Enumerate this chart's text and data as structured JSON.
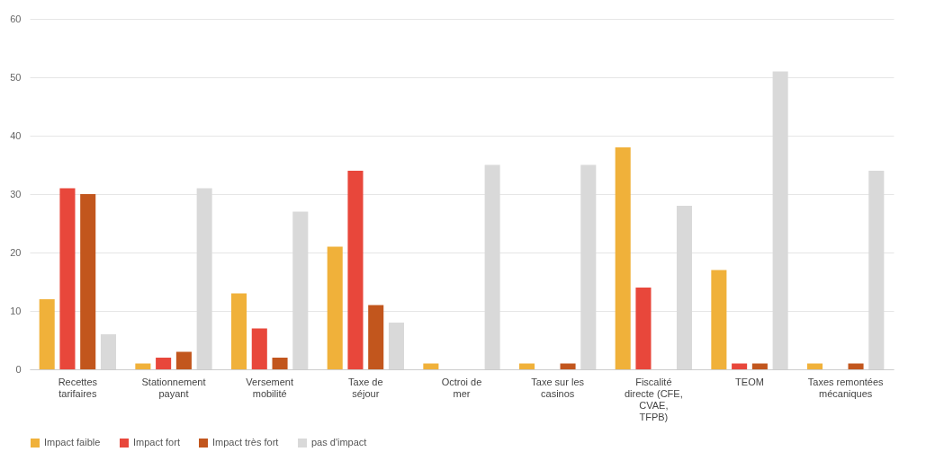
{
  "chart_data": {
    "type": "bar",
    "categories": [
      "Recettes tarifaires",
      "Stationnement payant",
      "Versement mobilité",
      "Taxe de séjour",
      "Octroi de mer",
      "Taxe sur les casinos",
      "Fiscalité directe (CFE, CVAE, TFPB)",
      "TEOM",
      "Taxes remontées mécaniques"
    ],
    "series": [
      {
        "name": "Impact faible",
        "color": "#f0b13a",
        "values": [
          12,
          1,
          13,
          21,
          1,
          1,
          38,
          17,
          1
        ]
      },
      {
        "name": "Impact fort",
        "color": "#e8473b",
        "values": [
          31,
          2,
          7,
          34,
          0,
          0,
          14,
          1,
          0
        ]
      },
      {
        "name": "Impact très fort",
        "color": "#c2561d",
        "values": [
          30,
          3,
          2,
          11,
          0,
          1,
          0,
          1,
          1
        ]
      },
      {
        "name": "pas d'impact",
        "color": "#d9d9d9",
        "values": [
          6,
          31,
          27,
          8,
          35,
          35,
          28,
          51,
          34
        ]
      }
    ],
    "ylim": [
      0,
      60
    ],
    "yticks": [
      0,
      10,
      20,
      30,
      40,
      50,
      60
    ],
    "grid": "y",
    "legend": "bottom"
  }
}
